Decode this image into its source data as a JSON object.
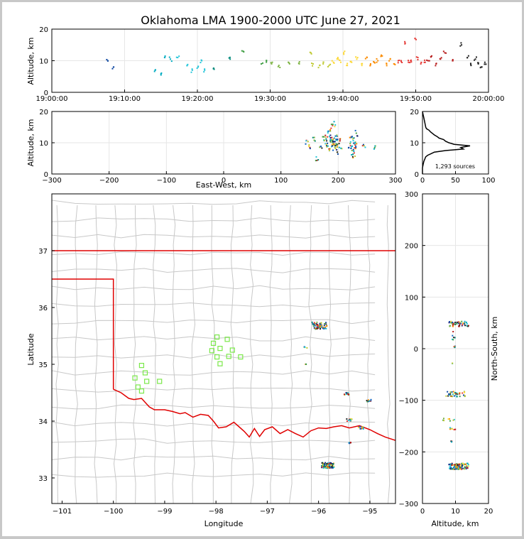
{
  "title": "Oklahoma LMA 1900-2000 UTC June 27, 2021",
  "chart_data": [
    {
      "panel": "altitude-vs-time",
      "type": "scatter",
      "ylabel": "Altitude, km",
      "xlim": [
        "19:00:00",
        "20:00:00"
      ],
      "ylim": [
        0,
        20
      ],
      "xticks": [
        "19:00:00",
        "19:10:00",
        "19:20:00",
        "19:30:00",
        "19:40:00",
        "19:50:00",
        "20:00:00"
      ],
      "yticks": [
        0,
        10,
        20
      ],
      "x_minutes": [
        7.7,
        8.5,
        14.2,
        15.0,
        15.5,
        16.3,
        17.3,
        18.6,
        19.3,
        20.1,
        20.6,
        21.0,
        22.2,
        24.5,
        26.3,
        28.8,
        29.5,
        30.2,
        31.2,
        32.5,
        34.0,
        35.6,
        35.9,
        36.8,
        37.3,
        38.1,
        38.7,
        39.3,
        39.7,
        40.1,
        40.6,
        41.2,
        41.9,
        42.6,
        43.3,
        43.8,
        44.3,
        44.8,
        45.4,
        46.0,
        46.5,
        47.0,
        47.6,
        48.0,
        48.5,
        49.0,
        49.3,
        49.9,
        50.3,
        50.7,
        51.3,
        51.7,
        52.2,
        52.8,
        53.4,
        54.0,
        55.1,
        56.3,
        57.1,
        57.6,
        58.2,
        58.6,
        59.0,
        59.5
      ],
      "alt_km": [
        10,
        8,
        7,
        5.5,
        11,
        10.5,
        11,
        8.5,
        7,
        8,
        10,
        7,
        7.5,
        10.5,
        13,
        9,
        10,
        9,
        8.5,
        9.5,
        9,
        12.5,
        9,
        8.5,
        9.5,
        8.5,
        9.5,
        11,
        9.5,
        12.5,
        8.5,
        9.5,
        10.5,
        8.5,
        11,
        9,
        9.5,
        10,
        11.5,
        9,
        10.5,
        9,
        10,
        10,
        16,
        9.5,
        10,
        17,
        11,
        9,
        9.5,
        10,
        11.5,
        9,
        10.5,
        12.5,
        10,
        15,
        11,
        8.5,
        10.5,
        9,
        8,
        9.5
      ]
    },
    {
      "panel": "altitude-vs-east-west",
      "type": "scatter",
      "xlabel": "East-West, km",
      "ylabel": "Altitude, km",
      "xlim": [
        -300,
        300
      ],
      "ylim": [
        0,
        20
      ],
      "xticks": [
        -300,
        -200,
        -100,
        0,
        100,
        200,
        300
      ],
      "yticks": [
        0,
        10,
        20
      ],
      "x_km": [
        145,
        150,
        158,
        163,
        170,
        175,
        178,
        180,
        182,
        184,
        185,
        186,
        187,
        188,
        189,
        190,
        191,
        192,
        193,
        194,
        195,
        196,
        197,
        198,
        199,
        200,
        202,
        204,
        220,
        222,
        224,
        225,
        226,
        227,
        228,
        229,
        230,
        232,
        245,
        265
      ],
      "alt_km": [
        10,
        9,
        11,
        5,
        8.5,
        11,
        10,
        12,
        9,
        13,
        10.5,
        8,
        12,
        15,
        9.5,
        10,
        11,
        8.5,
        16,
        9,
        10,
        12.5,
        9,
        10.5,
        7,
        9.5,
        11,
        9,
        9,
        11,
        8,
        7,
        12,
        6,
        10,
        8.5,
        9.5,
        13,
        9,
        8.5
      ]
    },
    {
      "panel": "altitude-histogram",
      "type": "line",
      "annotation": "1,293 sources",
      "xlim": [
        0,
        100
      ],
      "ylim": [
        0,
        20
      ],
      "xticks": [
        0,
        50,
        100
      ],
      "yticks": [
        0,
        10,
        20
      ],
      "alt_km": [
        0,
        2,
        3,
        4,
        4.5,
        5,
        5.5,
        6,
        6.5,
        7,
        7.5,
        8,
        8.5,
        9,
        9.5,
        10,
        10.5,
        11,
        11.5,
        12,
        12.5,
        13,
        13.5,
        14,
        14.5,
        15,
        16,
        17,
        18,
        19,
        20
      ],
      "count": [
        0,
        0,
        1,
        2,
        3,
        4,
        5,
        8,
        13,
        18,
        35,
        62,
        58,
        72,
        48,
        40,
        35,
        32,
        25,
        22,
        18,
        15,
        12,
        10,
        6,
        5,
        4,
        3,
        2,
        1,
        0
      ]
    },
    {
      "panel": "plan-view-map",
      "type": "scatter",
      "xlabel": "Longitude",
      "ylabel": "Latitude",
      "xlim": [
        -101.2,
        -94.5
      ],
      "ylim": [
        32.55,
        38.0
      ],
      "xticks": [
        -101,
        -100,
        -99,
        -98,
        -97,
        -96,
        -95
      ],
      "yticks": [
        33,
        34,
        35,
        36,
        37
      ],
      "lma_stations": [
        {
          "lon": -99.45,
          "lat": 34.98
        },
        {
          "lon": -99.38,
          "lat": 34.85
        },
        {
          "lon": -99.58,
          "lat": 34.76
        },
        {
          "lon": -99.35,
          "lat": 34.7
        },
        {
          "lon": -99.52,
          "lat": 34.6
        },
        {
          "lon": -99.45,
          "lat": 34.53
        },
        {
          "lon": -99.1,
          "lat": 34.7
        },
        {
          "lon": -97.98,
          "lat": 35.48
        },
        {
          "lon": -98.05,
          "lat": 35.37
        },
        {
          "lon": -97.92,
          "lat": 35.28
        },
        {
          "lon": -98.08,
          "lat": 35.24
        },
        {
          "lon": -97.78,
          "lat": 35.44
        },
        {
          "lon": -97.68,
          "lat": 35.25
        },
        {
          "lon": -97.98,
          "lat": 35.13
        },
        {
          "lon": -97.75,
          "lat": 35.14
        },
        {
          "lon": -97.52,
          "lat": 35.13
        },
        {
          "lon": -97.92,
          "lat": 35.01
        }
      ],
      "clusters": [
        {
          "lon": -95.98,
          "lat": 35.68,
          "spread": 0.15,
          "n": 60
        },
        {
          "lon": -96.25,
          "lat": 35.3,
          "spread": 0.03,
          "n": 6
        },
        {
          "lon": -96.25,
          "lat": 35.0,
          "spread": 0.01,
          "n": 3
        },
        {
          "lon": -95.45,
          "lat": 34.48,
          "spread": 0.05,
          "n": 12
        },
        {
          "lon": -95.02,
          "lat": 34.36,
          "spread": 0.05,
          "n": 8
        },
        {
          "lon": -95.4,
          "lat": 34.02,
          "spread": 0.05,
          "n": 10
        },
        {
          "lon": -95.18,
          "lat": 33.88,
          "spread": 0.06,
          "n": 10
        },
        {
          "lon": -95.4,
          "lat": 33.62,
          "spread": 0.03,
          "n": 5
        },
        {
          "lon": -95.82,
          "lat": 33.22,
          "spread": 0.12,
          "n": 90
        }
      ]
    },
    {
      "panel": "north-south-vs-altitude",
      "type": "scatter",
      "xlabel": "Altitude, km",
      "ylabel": "North-South, km",
      "xlim": [
        0,
        20
      ],
      "ylim": [
        -300,
        300
      ],
      "xticks": [
        0,
        10,
        20
      ],
      "yticks": [
        -300,
        -200,
        -100,
        0,
        100,
        200,
        300
      ],
      "clusters": [
        {
          "alt": 11,
          "ns": 48,
          "spread_alt": 3,
          "spread_ns": 5,
          "n": 45
        },
        {
          "alt": 9,
          "ns": 25,
          "spread_alt": 1,
          "spread_ns": 8,
          "n": 6
        },
        {
          "alt": 10,
          "ns": 3,
          "spread_alt": 0.5,
          "spread_ns": 2,
          "n": 4
        },
        {
          "alt": 9,
          "ns": -28,
          "spread_alt": 0.3,
          "spread_ns": 1,
          "n": 2
        },
        {
          "alt": 10,
          "ns": -88,
          "spread_alt": 3,
          "spread_ns": 5,
          "n": 35
        },
        {
          "alt": 8,
          "ns": -138,
          "spread_alt": 2,
          "spread_ns": 3,
          "n": 8
        },
        {
          "alt": 9,
          "ns": -155,
          "spread_alt": 1,
          "spread_ns": 2,
          "n": 6
        },
        {
          "alt": 9,
          "ns": -180,
          "spread_alt": 0.5,
          "spread_ns": 1,
          "n": 3
        },
        {
          "alt": 11,
          "ns": -228,
          "spread_alt": 3,
          "spread_ns": 6,
          "n": 100
        }
      ]
    }
  ],
  "colors": {
    "state_line": "#e00000",
    "county_line": "#c8c8c8",
    "station": "#7be84a",
    "time_scale": [
      "#1a237e",
      "#0d47a1",
      "#1565c0",
      "#00acc1",
      "#26c6da",
      "#00897b",
      "#43a047",
      "#7cb342",
      "#c0ca33",
      "#fdd835",
      "#fb8c00",
      "#e53935",
      "#b71c1c",
      "#222222"
    ]
  }
}
